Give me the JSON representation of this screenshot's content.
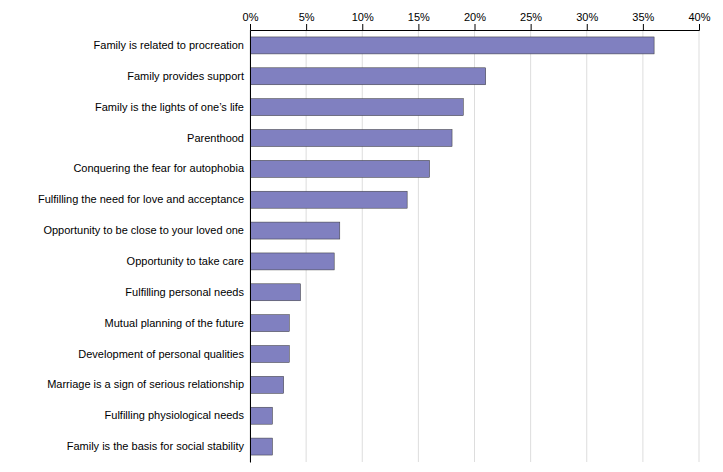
{
  "chart_data": {
    "type": "bar",
    "orientation": "horizontal",
    "categories": [
      "Family is the basis for social stability",
      "Fulfilling physiological needs",
      "Marriage is a sign of serious relationship",
      "Development of personal qualities",
      "Mutual planning of the future",
      "Fulfilling personal needs",
      "Opportunity to take care",
      "Opportunity to be close to your loved one",
      "Fulfilling the need for love and acceptance",
      "Conquering the fear for autophobia",
      "Parenthood",
      "Family is the lights of one’s life",
      "Family provides support",
      "Family is related to procreation"
    ],
    "values": [
      2.0,
      2.0,
      3.0,
      3.5,
      3.5,
      4.5,
      7.5,
      8.0,
      14.0,
      16.0,
      18.0,
      19.0,
      21.0,
      36.0
    ],
    "color": "#8080c0",
    "xlim": [
      0,
      40
    ],
    "xticks": [
      {
        "value": 0,
        "label": "0%"
      },
      {
        "value": 5,
        "label": "5%"
      },
      {
        "value": 10,
        "label": "10%"
      },
      {
        "value": 15,
        "label": "15%"
      },
      {
        "value": 20,
        "label": "20%"
      },
      {
        "value": 25,
        "label": "25%"
      },
      {
        "value": 30,
        "label": "30%"
      },
      {
        "value": 35,
        "label": "35%"
      },
      {
        "value": 40,
        "label": "40%"
      }
    ],
    "grid": true
  }
}
